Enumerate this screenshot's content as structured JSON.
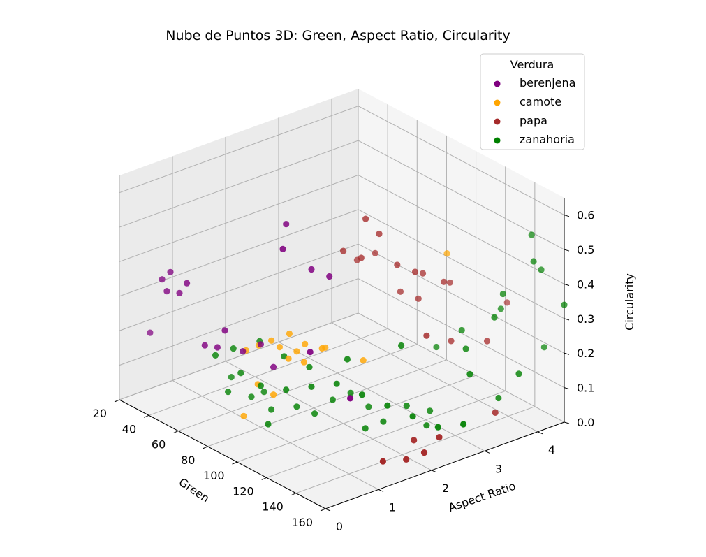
{
  "chart_data": {
    "type": "scatter",
    "projection": "3d",
    "title": "Nube de Puntos 3D: Green, Aspect Ratio, Circularity",
    "xlabel": "Green",
    "ylabel": "Aspect Ratio",
    "zlabel": "Circularity",
    "xlim": [
      20,
      160
    ],
    "ylim": [
      0,
      4.5
    ],
    "zlim": [
      0,
      0.65
    ],
    "x_ticks": [
      "20",
      "40",
      "60",
      "80",
      "100",
      "120",
      "140",
      "160"
    ],
    "y_ticks": [
      "0",
      "1",
      "2",
      "3",
      "4"
    ],
    "z_ticks": [
      "0.0",
      "0.1",
      "0.2",
      "0.3",
      "0.4",
      "0.5",
      "0.6"
    ],
    "grid": true,
    "legend": {
      "title": "Verdura",
      "placement": "top-right",
      "entries": [
        "berenjena",
        "camote",
        "papa",
        "zanahoria"
      ]
    },
    "series": [
      {
        "name": "berenjena",
        "color": "#800080",
        "points": [
          [
            30,
            0.3,
            0.2
          ],
          [
            40,
            0.25,
            0.38
          ],
          [
            42,
            0.35,
            0.4
          ],
          [
            45,
            0.2,
            0.36
          ],
          [
            55,
            0.3,
            0.4
          ],
          [
            60,
            0.5,
            0.22
          ],
          [
            65,
            0.6,
            0.22
          ],
          [
            70,
            0.6,
            0.28
          ],
          [
            75,
            0.8,
            0.22
          ],
          [
            80,
            1.0,
            0.24
          ],
          [
            85,
            1.1,
            0.18
          ],
          [
            90,
            1.2,
            0.6
          ],
          [
            95,
            1.0,
            0.55
          ],
          [
            100,
            1.4,
            0.48
          ],
          [
            110,
            1.1,
            0.28
          ],
          [
            130,
            1.3,
            0.18
          ],
          [
            105,
            1.6,
            0.46
          ],
          [
            50,
            0.3,
            0.36
          ]
        ]
      },
      {
        "name": "camote",
        "color": "#FFA500",
        "points": [
          [
            70,
            1.0,
            0.2
          ],
          [
            75,
            1.1,
            0.22
          ],
          [
            80,
            1.2,
            0.24
          ],
          [
            82,
            1.3,
            0.22
          ],
          [
            85,
            1.4,
            0.26
          ],
          [
            88,
            1.3,
            0.2
          ],
          [
            90,
            1.4,
            0.22
          ],
          [
            92,
            1.5,
            0.24
          ],
          [
            95,
            1.4,
            0.2
          ],
          [
            78,
            1.0,
            0.12
          ],
          [
            85,
            1.1,
            0.1
          ],
          [
            100,
            1.6,
            0.24
          ],
          [
            95,
            1.8,
            0.22
          ],
          [
            110,
            2.1,
            0.2
          ],
          [
            72,
            0.9,
            0.02
          ],
          [
            120,
            3.4,
            0.46
          ]
        ]
      },
      {
        "name": "papa",
        "color": "#A52A2A",
        "points": [
          [
            100,
            2.0,
            0.5
          ],
          [
            105,
            2.2,
            0.48
          ],
          [
            110,
            2.4,
            0.55
          ],
          [
            115,
            2.6,
            0.46
          ],
          [
            120,
            2.8,
            0.44
          ],
          [
            118,
            3.0,
            0.42
          ],
          [
            125,
            3.2,
            0.4
          ],
          [
            110,
            2.8,
            0.36
          ],
          [
            115,
            3.0,
            0.34
          ],
          [
            122,
            3.4,
            0.38
          ],
          [
            130,
            3.2,
            0.24
          ],
          [
            140,
            3.6,
            0.24
          ],
          [
            100,
            2.6,
            0.46
          ],
          [
            108,
            2.2,
            0.6
          ],
          [
            95,
            2.4,
            0.44
          ],
          [
            150,
            1.8,
            0.02
          ],
          [
            155,
            2.0,
            0.04
          ],
          [
            145,
            1.5,
            0.02
          ],
          [
            158,
            2.2,
            0.08
          ],
          [
            148,
            2.0,
            0.06
          ],
          [
            160,
            3.2,
            0.1
          ],
          [
            132,
            4.2,
            0.3
          ],
          [
            135,
            2.6,
            0.3
          ]
        ]
      },
      {
        "name": "zanahoria",
        "color": "#008000",
        "points": [
          [
            60,
            1.0,
            0.1
          ],
          [
            65,
            0.8,
            0.08
          ],
          [
            70,
            1.1,
            0.06
          ],
          [
            75,
            1.2,
            0.08
          ],
          [
            80,
            1.2,
            0.04
          ],
          [
            85,
            1.0,
            0.02
          ],
          [
            90,
            1.4,
            0.06
          ],
          [
            95,
            1.6,
            0.04
          ],
          [
            100,
            1.8,
            0.08
          ],
          [
            105,
            2.0,
            0.1
          ],
          [
            110,
            2.2,
            0.06
          ],
          [
            115,
            2.0,
            0.02
          ],
          [
            120,
            2.2,
            0.04
          ],
          [
            125,
            2.5,
            0.08
          ],
          [
            130,
            2.8,
            0.06
          ],
          [
            135,
            2.6,
            0.04
          ],
          [
            70,
            0.9,
            0.14
          ],
          [
            80,
            1.0,
            0.12
          ],
          [
            90,
            1.2,
            0.12
          ],
          [
            100,
            1.4,
            0.14
          ],
          [
            110,
            1.6,
            0.16
          ],
          [
            120,
            1.8,
            0.14
          ],
          [
            130,
            2.0,
            0.12
          ],
          [
            140,
            2.2,
            0.1
          ],
          [
            150,
            2.4,
            0.08
          ],
          [
            160,
            2.6,
            0.1
          ],
          [
            150,
            3.0,
            0.2
          ],
          [
            140,
            3.2,
            0.24
          ],
          [
            130,
            3.4,
            0.26
          ],
          [
            120,
            3.2,
            0.2
          ],
          [
            135,
            4.0,
            0.3
          ],
          [
            150,
            4.4,
            0.2
          ],
          [
            60,
            0.7,
            0.18
          ],
          [
            65,
            0.9,
            0.2
          ],
          [
            72,
            1.2,
            0.22
          ],
          [
            85,
            1.3,
            0.2
          ],
          [
            95,
            1.5,
            0.18
          ],
          [
            110,
            1.8,
            0.22
          ],
          [
            125,
            2.4,
            0.26
          ],
          [
            145,
            3.6,
            0.32
          ],
          [
            150,
            4.2,
            0.46
          ],
          [
            145,
            4.3,
            0.52
          ],
          [
            148,
            4.4,
            0.42
          ],
          [
            140,
            3.9,
            0.36
          ],
          [
            155,
            3.4,
            0.12
          ],
          [
            158,
            3.7,
            0.18
          ],
          [
            160,
            4.5,
            0.34
          ]
        ]
      }
    ]
  }
}
